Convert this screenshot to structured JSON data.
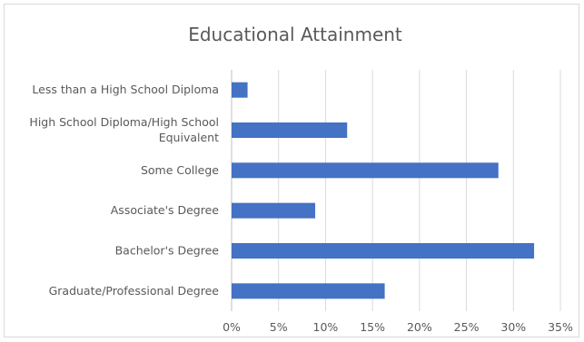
{
  "chart_data": {
    "type": "bar",
    "orientation": "horizontal",
    "title": "Educational Attainment",
    "categories": [
      "Less than a High School Diploma",
      "High School Diploma/High School Equivalent",
      "Some College",
      "Associate's Degree",
      "Bachelor's Degree",
      "Graduate/Professional Degree"
    ],
    "category_lines": [
      [
        "Less than a High School Diploma"
      ],
      [
        "High School Diploma/High School",
        "Equivalent"
      ],
      [
        "Some College"
      ],
      [
        "Associate's Degree"
      ],
      [
        "Bachelor's Degree"
      ],
      [
        "Graduate/Professional Degree"
      ]
    ],
    "values": [
      1.7,
      12.3,
      28.4,
      8.9,
      32.2,
      16.3
    ],
    "xlim": [
      0,
      35
    ],
    "x_ticks": [
      0,
      5,
      10,
      15,
      20,
      25,
      30,
      35
    ],
    "x_tick_labels": [
      "0%",
      "5%",
      "10%",
      "15%",
      "20%",
      "25%",
      "30%",
      "35%"
    ],
    "xlabel": "",
    "ylabel": "",
    "grid": "vertical",
    "legend": "none",
    "bar_color": "#4472c4"
  }
}
